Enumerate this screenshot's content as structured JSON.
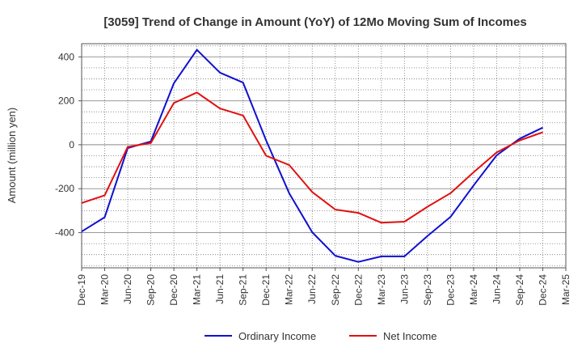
{
  "chart_data": {
    "type": "line",
    "title": "[3059]  Trend of Change in Amount (YoY) of 12Mo Moving Sum of Incomes",
    "xlabel": "",
    "ylabel": "Amount (million yen)",
    "ylim": [
      -560,
      460
    ],
    "yticks": [
      400,
      200,
      0,
      -200,
      -400
    ],
    "categories": [
      "Dec-19",
      "Mar-20",
      "Jun-20",
      "Sep-20",
      "Dec-20",
      "Mar-21",
      "Jun-21",
      "Sep-21",
      "Dec-21",
      "Mar-22",
      "Jun-22",
      "Sep-22",
      "Dec-22",
      "Mar-23",
      "Jun-23",
      "Sep-23",
      "Dec-23",
      "Mar-24",
      "Jun-24",
      "Sep-24",
      "Dec-24",
      "Mar-25"
    ],
    "series": [
      {
        "name": "Ordinary Income",
        "color": "#1010d0",
        "values": [
          -395,
          -330,
          -15,
          15,
          280,
          432,
          328,
          283,
          20,
          -220,
          -398,
          -505,
          -533,
          -508,
          -508,
          -415,
          -328,
          -185,
          -48,
          28,
          78,
          null
        ]
      },
      {
        "name": "Net Income",
        "color": "#e01010",
        "values": [
          -265,
          -230,
          -10,
          8,
          190,
          238,
          165,
          133,
          -50,
          -92,
          -215,
          -295,
          -310,
          -355,
          -350,
          -282,
          -220,
          -125,
          -35,
          20,
          57,
          null
        ]
      }
    ],
    "grid": true,
    "legend_position": "bottom-center"
  }
}
